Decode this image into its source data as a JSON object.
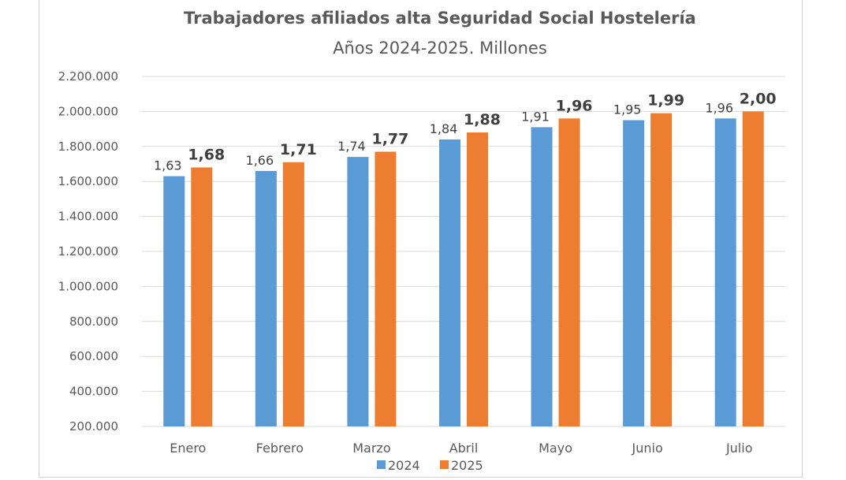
{
  "chart_data": {
    "type": "bar",
    "title": "Trabajadores afiliados alta Seguridad Social Hostelería",
    "subtitle": "Años 2024-2025. Millones",
    "xlabel": "",
    "ylabel": "",
    "categories": [
      "Enero",
      "Febrero",
      "Marzo",
      "Abril",
      "Mayo",
      "Junio",
      "Julio"
    ],
    "series": [
      {
        "name": "2024",
        "color": "#5b9bd5",
        "values": [
          1630000,
          1660000,
          1740000,
          1840000,
          1910000,
          1950000,
          1960000
        ],
        "labels": [
          "1,63",
          "1,66",
          "1,74",
          "1,84",
          "1,91",
          "1,95",
          "1,96"
        ]
      },
      {
        "name": "2025",
        "color": "#ed7d31",
        "values": [
          1680000,
          1710000,
          1770000,
          1880000,
          1960000,
          1990000,
          2000000
        ],
        "labels": [
          "1,68",
          "1,71",
          "1,77",
          "1,88",
          "1,96",
          "1,99",
          "2,00"
        ]
      }
    ],
    "ylim": [
      200000,
      2200000
    ],
    "yticks": [
      200000,
      400000,
      600000,
      800000,
      1000000,
      1200000,
      1400000,
      1600000,
      1800000,
      2000000,
      2200000
    ],
    "ytick_labels": [
      "200.000",
      "400.000",
      "600.000",
      "800.000",
      "1.000.000",
      "1.200.000",
      "1.400.000",
      "1.600.000",
      "1.800.000",
      "2.000.000",
      "2.200.000"
    ],
    "grid": true,
    "legend_position": "bottom"
  }
}
